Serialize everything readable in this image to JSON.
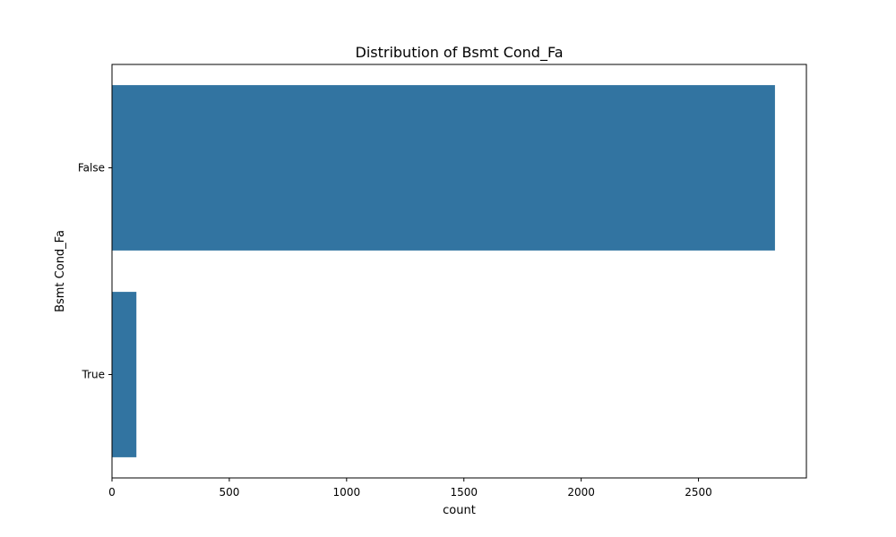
{
  "chart_data": {
    "type": "bar",
    "orientation": "horizontal",
    "title": "Distribution of Bsmt Cond_Fa",
    "xlabel": "count",
    "ylabel": "Bsmt Cond_Fa",
    "categories": [
      "False",
      "True"
    ],
    "values": [
      2826,
      104
    ],
    "xlim": [
      0,
      2960
    ],
    "xticks": [
      0,
      500,
      1000,
      1500,
      2000,
      2500
    ],
    "bar_color": "#3274a1",
    "grid": false,
    "legend": "none"
  }
}
